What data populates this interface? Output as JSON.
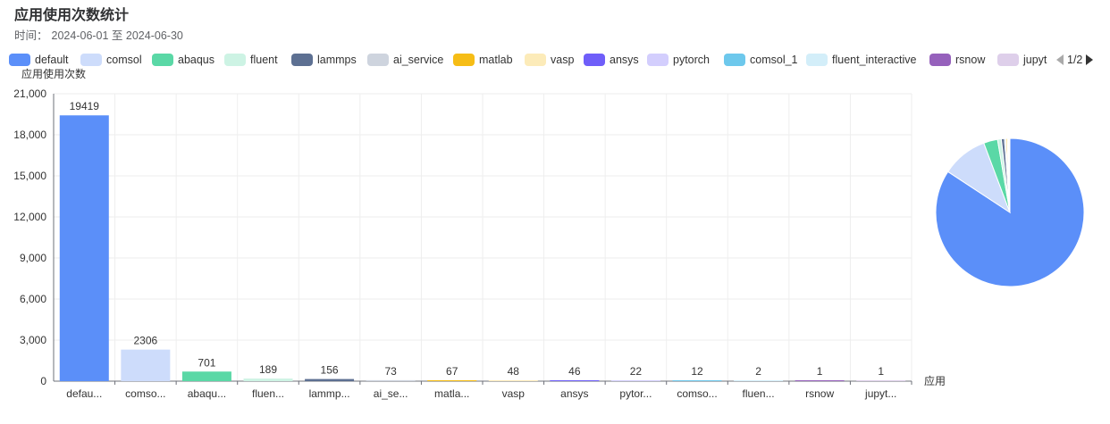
{
  "chart_data": {
    "type": "bar",
    "title": "应用使用次数统计",
    "subtitle_prefix": "时间：",
    "date_range": "2024-06-01 至 2024-06-30",
    "xlabel": "应用",
    "ylabel": "应用使用次数",
    "ylim": [
      0,
      21000
    ],
    "yticks": [
      0,
      3000,
      6000,
      9000,
      12000,
      15000,
      18000,
      21000
    ],
    "ytick_labels": [
      "0",
      "3,000",
      "6,000",
      "9,000",
      "12,000",
      "15,000",
      "18,000",
      "21,000"
    ],
    "grid": true,
    "legend_position": "top",
    "legend_page": "1/2",
    "categories": [
      "default",
      "comsol",
      "abaqus",
      "fluent",
      "lammps",
      "ai_service",
      "matlab",
      "vasp",
      "ansys",
      "pytorch",
      "comsol_1",
      "fluent_interactive",
      "rsnow",
      "jupyter"
    ],
    "category_tick_labels": [
      "defau...",
      "comso...",
      "abaqu...",
      "fluen...",
      "lammp...",
      "ai_se...",
      "matla...",
      "vasp",
      "ansys",
      "pytor...",
      "comso...",
      "fluen...",
      "rsnow",
      "jupyt..."
    ],
    "legend_labels": [
      "default",
      "comsol",
      "abaqus",
      "fluent",
      "lammps",
      "ai_service",
      "matlab",
      "vasp",
      "ansys",
      "pytorch",
      "comsol_1",
      "fluent_interactive",
      "rsnow",
      "jupyt"
    ],
    "values": [
      19419,
      2306,
      701,
      189,
      156,
      73,
      67,
      48,
      46,
      22,
      12,
      2,
      1,
      1
    ],
    "colors": [
      "#5b8ff9",
      "#cddcfb",
      "#5ad8a6",
      "#cdf3e4",
      "#5d7092",
      "#ced4de",
      "#f6bd16",
      "#fcebb9",
      "#6f5ef9",
      "#d3cefd",
      "#6dc8ec",
      "#d3eef9",
      "#9661bc",
      "#decfea"
    ],
    "pie": true
  }
}
